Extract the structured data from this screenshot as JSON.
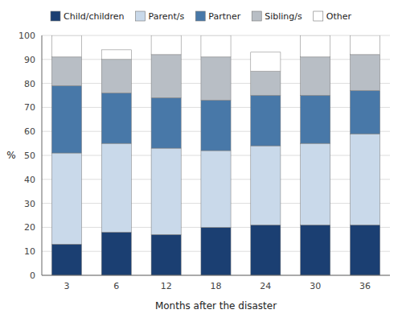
{
  "chart_data": {
    "type": "bar",
    "stacked": true,
    "categories": [
      "3",
      "6",
      "12",
      "18",
      "24",
      "30",
      "36"
    ],
    "series": [
      {
        "name": "Child/children",
        "color": "#1b3f72",
        "values": [
          13,
          18,
          17,
          20,
          21,
          21,
          21
        ]
      },
      {
        "name": "Parent/s",
        "color": "#c9d9ea",
        "values": [
          38,
          37,
          36,
          32,
          33,
          34,
          38
        ]
      },
      {
        "name": "Partner",
        "color": "#4878a8",
        "values": [
          28,
          21,
          21,
          21,
          21,
          20,
          18
        ]
      },
      {
        "name": "Sibling/s",
        "color": "#b8bec5",
        "values": [
          12,
          14,
          18,
          18,
          10,
          16,
          15
        ]
      },
      {
        "name": "Other",
        "color": "#ffffff",
        "values": [
          9,
          4,
          8,
          9,
          8,
          9,
          8
        ]
      }
    ],
    "xlabel": "Months after the disaster",
    "ylabel": "%",
    "ylim": [
      0,
      100
    ],
    "yticks": [
      0,
      10,
      20,
      30,
      40,
      50,
      60,
      70,
      80,
      90,
      100
    ],
    "grid": true,
    "legend": "top"
  }
}
